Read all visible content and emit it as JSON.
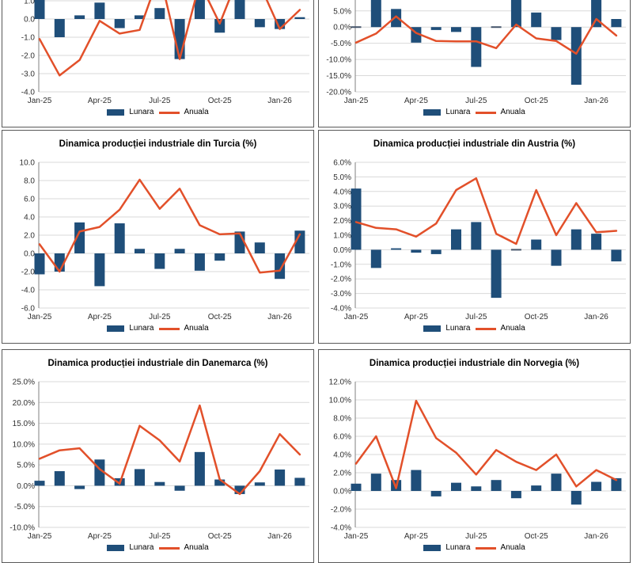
{
  "page": {
    "background": "#FFFFFF",
    "layout": "2x3 grid of chart panels, top row cropped at top, bottom row cropped at bottom"
  },
  "colors": {
    "bar": "#1F4E79",
    "line": "#E2502A",
    "grid": "#D9D9D9",
    "axis": "#808080",
    "panel_border": "#595959",
    "text": "#303030",
    "zero_dash": "#44546A",
    "background": "#FFFFFF"
  },
  "legend": {
    "lunara": "Lunara",
    "anuala": "Anuala"
  },
  "x_tick_labels": [
    "Jan-25",
    "Apr-25",
    "Jul-25",
    "Oct-25",
    "Jan-26"
  ],
  "x_tick_indices": [
    0,
    3,
    6,
    9,
    12
  ],
  "months": [
    "Jan-25",
    "Feb-25",
    "Mar-25",
    "Apr-25",
    "May-25",
    "Jun-25",
    "Jul-25",
    "Aug-25",
    "Sep-25",
    "Oct-25",
    "Nov-25",
    "Dec-25",
    "Jan-26",
    "Feb-26"
  ],
  "chart_data": [
    {
      "type": "bar+line",
      "title": "",
      "position": "top-left",
      "cropped": "top",
      "ylim": [
        -4,
        4
      ],
      "ytick_step": 1,
      "y_format": "number",
      "grid": true,
      "legend_position": "bottom",
      "categories": [
        "Jan-25",
        "Feb-25",
        "Mar-25",
        "Apr-25",
        "May-25",
        "Jun-25",
        "Jul-25",
        "Aug-25",
        "Sep-25",
        "Oct-25",
        "Nov-25",
        "Dec-25",
        "Jan-26",
        "Feb-26"
      ],
      "series": [
        {
          "name": "Lunara",
          "type": "bar",
          "values": [
            1.8,
            -1.0,
            0.2,
            0.9,
            -0.5,
            0.2,
            0.6,
            -2.2,
            1.9,
            -0.75,
            1.6,
            -0.45,
            -0.55,
            0.1
          ]
        },
        {
          "name": "Anuala",
          "type": "line",
          "values": [
            -1.1,
            -3.1,
            -2.25,
            -0.1,
            -0.8,
            -0.6,
            2.5,
            -2.2,
            2.0,
            -0.25,
            2.5,
            1.9,
            -0.55,
            0.5
          ]
        }
      ]
    },
    {
      "type": "bar+line",
      "title": "",
      "position": "top-right",
      "cropped": "top",
      "ylim": [
        -20,
        25
      ],
      "ytick_step": 5,
      "y_format": "percent",
      "grid": true,
      "legend_position": "bottom",
      "categories": [
        "Jan-25",
        "Feb-25",
        "Mar-25",
        "Apr-25",
        "May-25",
        "Jun-25",
        "Jul-25",
        "Aug-25",
        "Sep-25",
        "Oct-25",
        "Nov-25",
        "Dec-25",
        "Jan-26",
        "Feb-26"
      ],
      "series": [
        {
          "name": "Lunara",
          "type": "bar",
          "values": [
            0.0,
            9.5,
            5.6,
            -4.8,
            -0.9,
            -1.5,
            -12.3,
            0.0,
            9.0,
            4.5,
            -4.0,
            -17.8,
            9.5,
            2.5
          ]
        },
        {
          "name": "Anuala",
          "type": "line",
          "values": [
            -4.8,
            -2.0,
            3.3,
            -1.8,
            -4.3,
            -4.4,
            -4.4,
            -6.5,
            0.8,
            -3.5,
            -4.3,
            -8.2,
            2.5,
            -2.6
          ]
        }
      ]
    },
    {
      "type": "bar+line",
      "title": "Dinamica producției industriale din Turcia (%)",
      "position": "middle-left",
      "cropped": "none",
      "ylim": [
        -6,
        10
      ],
      "ytick_step": 2,
      "y_format": "number",
      "grid": true,
      "legend_position": "bottom",
      "categories": [
        "Jan-25",
        "Feb-25",
        "Mar-25",
        "Apr-25",
        "May-25",
        "Jun-25",
        "Jul-25",
        "Aug-25",
        "Sep-25",
        "Oct-25",
        "Nov-25",
        "Dec-25",
        "Jan-26",
        "Feb-26"
      ],
      "series": [
        {
          "name": "Lunara",
          "type": "bar",
          "values": [
            -2.3,
            -2.0,
            3.4,
            -3.6,
            3.3,
            0.5,
            -1.7,
            0.5,
            -1.9,
            -0.8,
            2.4,
            1.2,
            -2.8,
            2.5
          ]
        },
        {
          "name": "Anuala",
          "type": "line",
          "values": [
            1.0,
            -2.0,
            2.4,
            2.9,
            4.8,
            8.1,
            4.9,
            7.1,
            3.1,
            2.1,
            2.2,
            -2.1,
            -1.9,
            2.1
          ]
        }
      ]
    },
    {
      "type": "bar+line",
      "title": "Dinamica producției industriale din Austria (%)",
      "position": "middle-right",
      "cropped": "none",
      "ylim": [
        -4,
        6
      ],
      "ytick_step": 1,
      "y_format": "percent",
      "grid": true,
      "legend_position": "bottom",
      "categories": [
        "Jan-25",
        "Feb-25",
        "Mar-25",
        "Apr-25",
        "May-25",
        "Jun-25",
        "Jul-25",
        "Aug-25",
        "Sep-25",
        "Oct-25",
        "Nov-25",
        "Dec-25",
        "Jan-26",
        "Feb-26"
      ],
      "series": [
        {
          "name": "Lunara",
          "type": "bar",
          "values": [
            4.2,
            -1.25,
            0.1,
            -0.2,
            -0.3,
            1.4,
            1.9,
            -3.3,
            0.0,
            0.7,
            -1.1,
            1.4,
            1.1,
            -0.8
          ]
        },
        {
          "name": "Anuala",
          "type": "line",
          "values": [
            1.9,
            1.5,
            1.4,
            0.9,
            1.8,
            4.1,
            4.9,
            1.1,
            0.4,
            4.1,
            1.0,
            3.2,
            1.2,
            1.3
          ]
        }
      ]
    },
    {
      "type": "bar+line",
      "title": "Dinamica producției industriale din Danemarca (%)",
      "position": "bottom-left",
      "cropped": "bottom",
      "ylim": [
        -10,
        25
      ],
      "ytick_step": 5,
      "y_format": "percent",
      "grid": true,
      "legend_position": "bottom",
      "categories": [
        "Jan-25",
        "Feb-25",
        "Mar-25",
        "Apr-25",
        "May-25",
        "Jun-25",
        "Jul-25",
        "Aug-25",
        "Sep-25",
        "Oct-25",
        "Nov-25",
        "Dec-25",
        "Jan-26",
        "Feb-26"
      ],
      "series": [
        {
          "name": "Lunara",
          "type": "bar",
          "values": [
            1.2,
            3.5,
            -0.8,
            6.3,
            1.8,
            4.0,
            0.9,
            -1.2,
            8.1,
            1.5,
            -2.0,
            0.8,
            3.9,
            1.9
          ]
        },
        {
          "name": "Anuala",
          "type": "line",
          "values": [
            6.5,
            8.5,
            9.0,
            4.0,
            0.5,
            14.4,
            10.9,
            5.8,
            19.3,
            1.5,
            -2.0,
            3.5,
            12.4,
            7.5
          ]
        }
      ]
    },
    {
      "type": "bar+line",
      "title": "Dinamica producției industriale din Norvegia (%)",
      "position": "bottom-right",
      "cropped": "bottom",
      "ylim": [
        -4,
        12
      ],
      "ytick_step": 2,
      "y_format": "percent",
      "grid": true,
      "legend_position": "bottom",
      "categories": [
        "Jan-25",
        "Feb-25",
        "Mar-25",
        "Apr-25",
        "May-25",
        "Jun-25",
        "Jul-25",
        "Aug-25",
        "Sep-25",
        "Oct-25",
        "Nov-25",
        "Dec-25",
        "Jan-26",
        "Feb-26"
      ],
      "series": [
        {
          "name": "Lunara",
          "type": "bar",
          "values": [
            0.8,
            1.9,
            1.2,
            2.3,
            -0.6,
            0.9,
            0.5,
            1.2,
            -0.8,
            0.6,
            1.9,
            -1.5,
            1.0,
            1.4
          ]
        },
        {
          "name": "Anuala",
          "type": "line",
          "values": [
            3.0,
            6.0,
            0.3,
            9.9,
            5.8,
            4.2,
            1.8,
            4.5,
            3.2,
            2.3,
            4.0,
            0.5,
            2.3,
            1.2
          ]
        }
      ]
    }
  ]
}
